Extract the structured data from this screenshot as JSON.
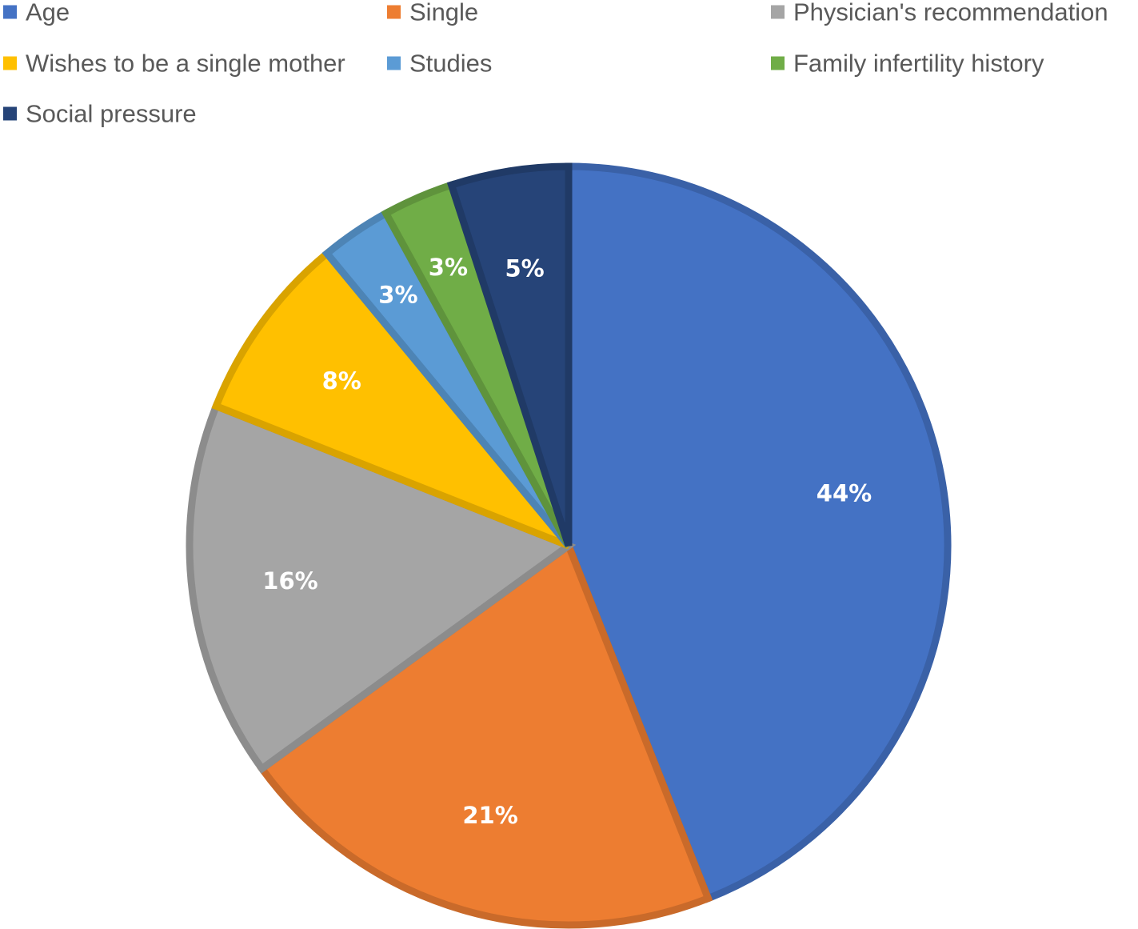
{
  "chart_data": {
    "type": "pie",
    "title": "",
    "start_angle_deg": 0,
    "direction": "clockwise",
    "legend_position": "top-left",
    "slices": [
      {
        "name": "Age",
        "value": 44,
        "label": "44%",
        "color": "#4472C4"
      },
      {
        "name": "Single",
        "value": 21,
        "label": "21%",
        "color": "#ED7D31"
      },
      {
        "name": "Physician's recommendation",
        "value": 16,
        "label": "16%",
        "color": "#A5A5A5"
      },
      {
        "name": "Wishes to be a single mother",
        "value": 8,
        "label": "8%",
        "color": "#FFC000"
      },
      {
        "name": "Studies",
        "value": 3,
        "label": "3%",
        "color": "#5B9BD5"
      },
      {
        "name": "Family infertility history",
        "value": 3,
        "label": "3%",
        "color": "#70AD47"
      },
      {
        "name": "Social pressure",
        "value": 5,
        "label": "5%",
        "color": "#264478"
      }
    ]
  }
}
